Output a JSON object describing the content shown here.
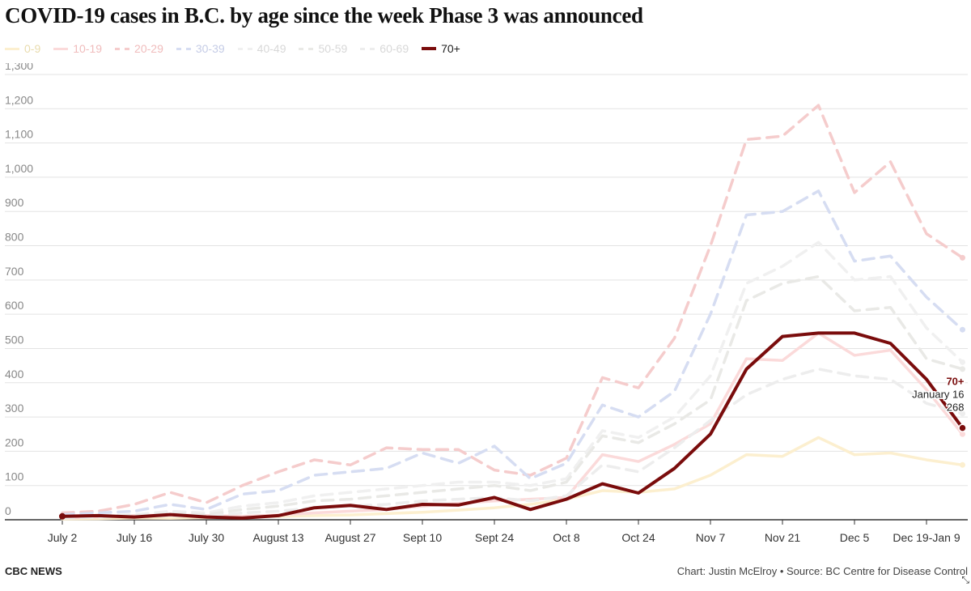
{
  "page": {
    "title": "COVID-19 cases in B.C. by age since the week Phase 3 was announced",
    "footer_left": "CBC NEWS",
    "footer_right": "Chart: Justin McElroy • Source: BC Centre for Disease Control"
  },
  "chart_data": {
    "type": "line",
    "title": "COVID-19 cases in B.C. by age since the week Phase 3 was announced",
    "xlabel": "",
    "ylabel": "",
    "ylim": [
      0,
      1300
    ],
    "yticks": [
      0,
      100,
      200,
      300,
      400,
      500,
      600,
      700,
      800,
      900,
      1000,
      1100,
      1200,
      1300
    ],
    "ytick_labels": [
      "0",
      "100",
      "200",
      "300",
      "400",
      "500",
      "600",
      "700",
      "800",
      "900",
      "1,000",
      "1,100",
      "1,200",
      "1,300"
    ],
    "grid": true,
    "legend_position": "top-left",
    "x_labels": [
      "July 2",
      "July 16",
      "July 30",
      "August 13",
      "August 27",
      "Sept 10",
      "Sept 24",
      "Oct 8",
      "Oct 24",
      "Nov 7",
      "Nov 21",
      "Dec 5",
      "Dec 19-Jan 9"
    ],
    "x_label_weeks": [
      0,
      2,
      4,
      6,
      8,
      10,
      12,
      14,
      16,
      18,
      20,
      22,
      24
    ],
    "weeks": 28,
    "highlight": {
      "series": "70+",
      "label": "70+",
      "date": "January 16",
      "value": "268"
    },
    "series": [
      {
        "name": "0-9",
        "color": "#fcefcf",
        "dashed": false,
        "values": [
          2,
          3,
          5,
          4,
          6,
          8,
          10,
          12,
          14,
          18,
          22,
          28,
          35,
          45,
          60,
          85,
          80,
          90,
          130,
          190,
          185,
          240,
          190,
          195,
          175,
          160
        ]
      },
      {
        "name": "10-19",
        "color": "#fbdada",
        "dashed": false,
        "values": [
          5,
          8,
          12,
          15,
          12,
          10,
          14,
          20,
          25,
          30,
          40,
          48,
          55,
          60,
          65,
          190,
          170,
          220,
          280,
          470,
          465,
          545,
          480,
          495,
          380,
          250
        ]
      },
      {
        "name": "20-29",
        "color": "#f5cccc",
        "dashed": true,
        "values": [
          20,
          25,
          45,
          80,
          50,
          100,
          140,
          175,
          160,
          210,
          205,
          205,
          145,
          130,
          180,
          415,
          385,
          530,
          800,
          1110,
          1120,
          1210,
          955,
          1045,
          835,
          765
        ]
      },
      {
        "name": "30-39",
        "color": "#d6ddf2",
        "dashed": true,
        "values": [
          15,
          20,
          25,
          45,
          30,
          75,
          85,
          130,
          140,
          150,
          195,
          165,
          215,
          120,
          165,
          335,
          300,
          375,
          600,
          890,
          900,
          960,
          755,
          770,
          650,
          555
        ]
      },
      {
        "name": "40-49",
        "color": "#f0f0f0",
        "dashed": true,
        "values": [
          10,
          12,
          15,
          25,
          20,
          40,
          50,
          70,
          80,
          90,
          100,
          110,
          110,
          100,
          120,
          260,
          240,
          300,
          420,
          690,
          740,
          810,
          700,
          710,
          560,
          460
        ]
      },
      {
        "name": "50-59",
        "color": "#e9e9e6",
        "dashed": true,
        "values": [
          8,
          10,
          12,
          18,
          15,
          30,
          40,
          55,
          60,
          70,
          80,
          90,
          100,
          85,
          110,
          245,
          225,
          280,
          350,
          640,
          690,
          710,
          610,
          620,
          470,
          440
        ]
      },
      {
        "name": "60-69",
        "color": "#ededed",
        "dashed": true,
        "values": [
          5,
          8,
          10,
          12,
          10,
          20,
          25,
          35,
          40,
          45,
          55,
          60,
          65,
          55,
          70,
          160,
          140,
          210,
          290,
          365,
          410,
          440,
          420,
          410,
          340,
          310
        ]
      },
      {
        "name": "70+",
        "color": "#7a0c0c",
        "dashed": false,
        "values": [
          10,
          12,
          8,
          15,
          8,
          5,
          12,
          35,
          42,
          30,
          45,
          43,
          65,
          30,
          60,
          105,
          78,
          150,
          250,
          440,
          535,
          545,
          545,
          515,
          410,
          268
        ]
      }
    ]
  }
}
